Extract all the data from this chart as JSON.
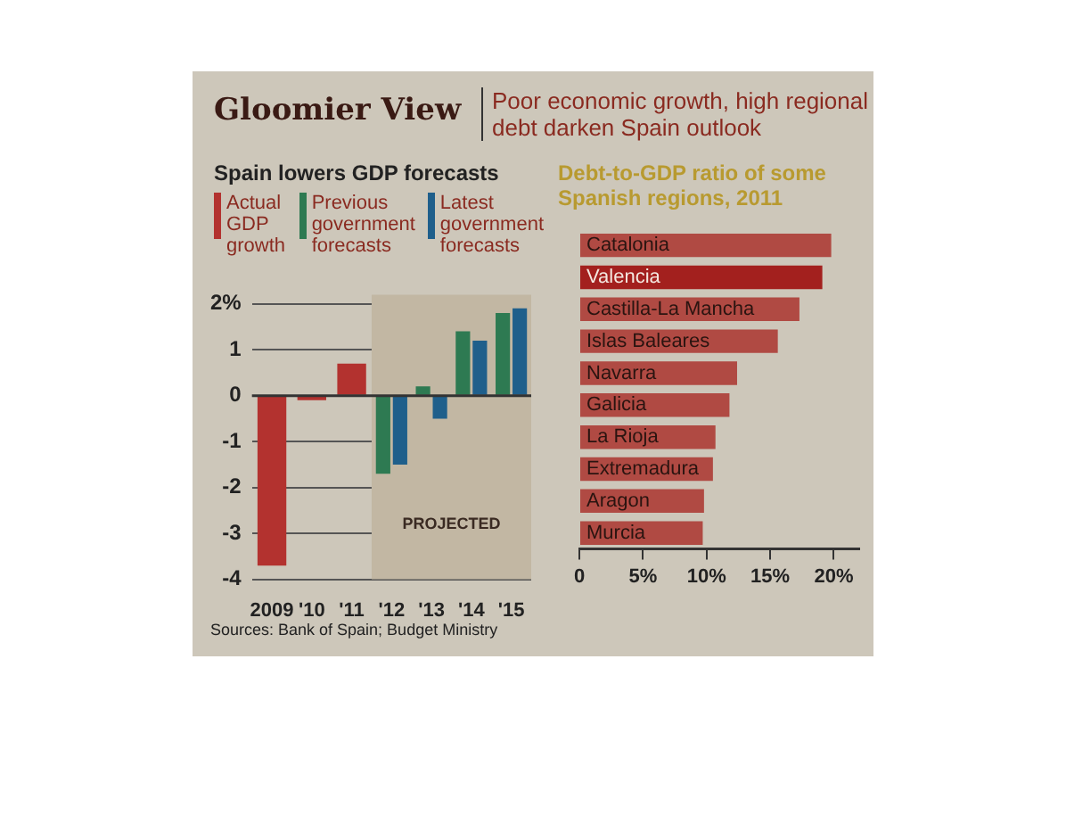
{
  "chart_data": [
    {
      "type": "other",
      "title": "Gloomier View",
      "subtitle": "Poor economic growth, high regional debt darken Spain outlook"
    },
    {
      "type": "bar",
      "title": "Spain lowers GDP forecasts",
      "categories": [
        "2009",
        "'10",
        "'11",
        "'12",
        "'13",
        "'14",
        "'15"
      ],
      "series": [
        {
          "name": "Actual GDP growth",
          "color": "#b3322f",
          "values": [
            -3.7,
            -0.1,
            0.7,
            null,
            null,
            null,
            null
          ]
        },
        {
          "name": "Previous government forecasts",
          "color": "#2e7a52",
          "values": [
            null,
            null,
            null,
            -1.7,
            0.2,
            1.4,
            1.8
          ]
        },
        {
          "name": "Latest government forecasts",
          "color": "#1f5f8b",
          "values": [
            null,
            null,
            null,
            -1.5,
            -0.5,
            1.2,
            1.9
          ]
        }
      ],
      "ylim": [
        -4,
        2.2
      ],
      "yticks": [
        -4,
        -3,
        -2,
        -1,
        0,
        1,
        {
          "value": 2,
          "label": "2%"
        }
      ],
      "grid": "y",
      "legend": "top",
      "bands": [
        {
          "axis": "x",
          "from": "'12",
          "to": "'15",
          "label": "PROJECTED",
          "color": "#c2b7a3"
        }
      ],
      "annotations": [
        "Sources: Bank of Spain; Budget Ministry"
      ]
    },
    {
      "type": "bar",
      "orientation": "horizontal",
      "title": "Debt-to-GDP ratio of some Spanish regions, 2011",
      "categories": [
        "Catalonia",
        "Valencia",
        "Castilla-La Mancha",
        "Islas Baleares",
        "Navarra",
        "Galicia",
        "La Rioja",
        "Extremadura",
        "Aragon",
        "Murcia"
      ],
      "values": [
        19.8,
        19.1,
        17.3,
        15.6,
        12.4,
        11.8,
        10.7,
        10.5,
        9.8,
        9.7
      ],
      "colors": [
        "#b04a43",
        "#a3201e",
        "#b04a43",
        "#b04a43",
        "#b04a43",
        "#b04a43",
        "#b04a43",
        "#b04a43",
        "#b04a43",
        "#b04a43"
      ],
      "xlim": [
        0,
        22
      ],
      "xticks": [
        0,
        {
          "value": 5,
          "label": "5%"
        },
        {
          "value": 10,
          "label": "10%"
        },
        {
          "value": 15,
          "label": "15%"
        },
        {
          "value": 20,
          "label": "20%"
        }
      ],
      "grid": false
    }
  ]
}
